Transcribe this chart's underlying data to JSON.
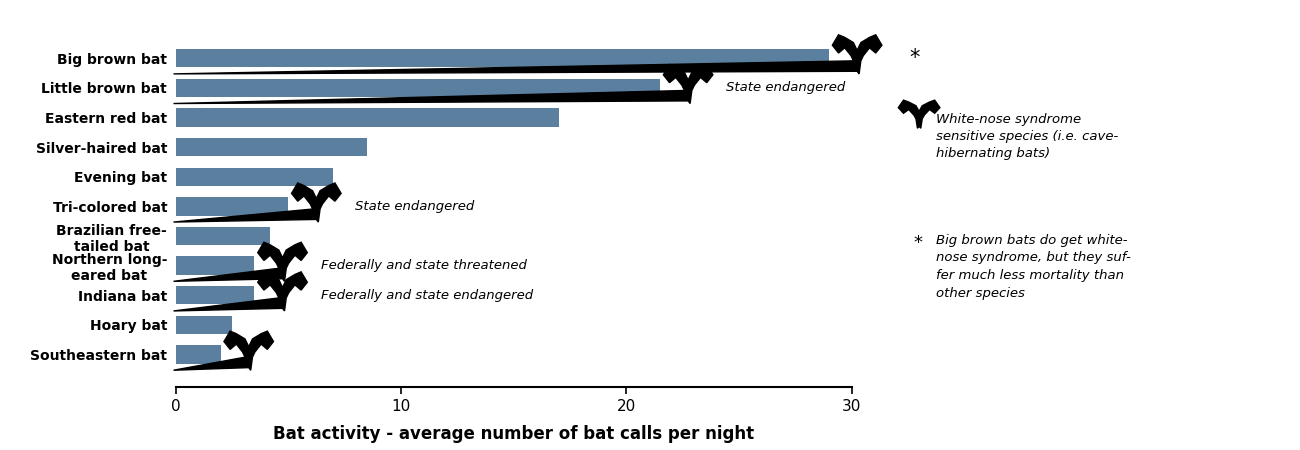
{
  "species": [
    "Southeastern bat",
    "Hoary bat",
    "Indiana bat",
    "Northern long-\neared bat",
    "Brazilian free-\ntailed bat",
    "Tri-colored bat",
    "Evening bat",
    "Silver-haired bat",
    "Eastern red bat",
    "Little brown bat",
    "Big brown bat"
  ],
  "values": [
    2.0,
    2.5,
    3.5,
    3.5,
    4.2,
    5.0,
    7.0,
    8.5,
    17.0,
    21.5,
    29.0
  ],
  "bar_color": "#5b7f9e",
  "xlabel": "Bat activity - average number of bat calls per night",
  "xlim": [
    0,
    30
  ],
  "xticks": [
    0,
    10,
    20,
    30
  ],
  "anno_items": [
    {
      "yi": 10,
      "val": 29.0,
      "text": null,
      "bat": true,
      "star": true
    },
    {
      "yi": 9,
      "val": 21.5,
      "text": "State endangered",
      "bat": true,
      "star": false
    },
    {
      "yi": 5,
      "val": 5.0,
      "text": "State endangered",
      "bat": true,
      "star": false
    },
    {
      "yi": 3,
      "val": 3.5,
      "text": "Federally and state threatened",
      "bat": true,
      "star": false
    },
    {
      "yi": 2,
      "val": 3.5,
      "text": "Federally and state endangered",
      "bat": true,
      "star": false
    },
    {
      "yi": 0,
      "val": 2.0,
      "text": null,
      "bat": true,
      "star": false
    }
  ],
  "legend_bat_text": "White-nose syndrome\nsensitive species (i.e. cave-\nhibernating bats)",
  "legend_asterisk_text": "Big brown bats do get white-\nnose syndrome, but they suf-\nfer much less mortality than\nother species",
  "background_color": "#ffffff"
}
